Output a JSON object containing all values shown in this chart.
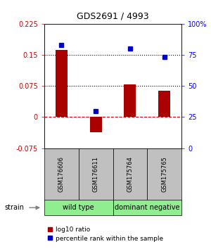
{
  "title": "GDS2691 / 4993",
  "samples": [
    "GSM176606",
    "GSM176611",
    "GSM175764",
    "GSM175765"
  ],
  "log10_ratio": [
    0.161,
    -0.037,
    0.078,
    0.063
  ],
  "percentile_rank": [
    83,
    30,
    80,
    73
  ],
  "ylim_left": [
    -0.075,
    0.225
  ],
  "ylim_right": [
    0,
    100
  ],
  "bar_color": "#AA0000",
  "dot_color": "#0000CC",
  "left_ticks": [
    -0.075,
    0,
    0.075,
    0.15,
    0.225
  ],
  "right_ticks": [
    0,
    25,
    50,
    75,
    100
  ],
  "right_tick_labels": [
    "0",
    "25",
    "50",
    "75",
    "100%"
  ],
  "group_bg_color": "#C0C0C0",
  "wt_color": "#90EE90",
  "dn_color": "#90EE90",
  "wt_label": "wild type",
  "dn_label": "dominant negative",
  "strain_label": "strain",
  "legend1": "log10 ratio",
  "legend2": "percentile rank within the sample"
}
